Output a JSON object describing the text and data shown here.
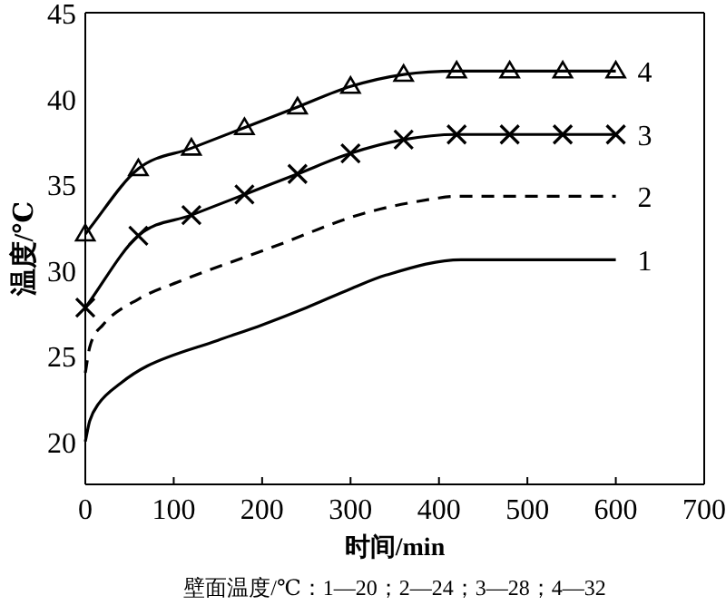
{
  "chart_data": {
    "type": "line",
    "xlabel": "时间/min",
    "ylabel": "温度/℃",
    "annotations": [
      "壁面温度/℃：1—20；2—24；3—28；4—32"
    ],
    "xlim": [
      0,
      700
    ],
    "xticks": [
      0,
      100,
      200,
      300,
      400,
      500,
      600,
      700
    ],
    "ylim": [
      17.5,
      45
    ],
    "yticks": [
      20,
      25,
      30,
      35,
      40,
      45
    ],
    "grid": false,
    "legend": false,
    "series": [
      {
        "name": "1",
        "color": "#000000",
        "line_style": "solid",
        "marker": "none",
        "x": [
          0,
          5,
          15,
          40,
          70,
          150,
          200,
          250,
          300,
          340,
          425,
          600
        ],
        "values": [
          20.0,
          21.2,
          22.2,
          23.4,
          24.4,
          25.9,
          26.8,
          27.8,
          28.9,
          29.7,
          30.6,
          30.6
        ]
      },
      {
        "name": "2",
        "color": "#000000",
        "line_style": "dashed",
        "marker": "none",
        "x": [
          0,
          5,
          20,
          60,
          110,
          210,
          315,
          400,
          420,
          600
        ],
        "values": [
          24.0,
          25.5,
          26.8,
          28.3,
          29.4,
          31.3,
          33.3,
          34.2,
          34.3,
          34.3
        ]
      },
      {
        "name": "3",
        "color": "#000000",
        "line_style": "solid",
        "marker": "cross",
        "x": [
          0,
          60,
          120,
          180,
          240,
          300,
          360,
          420,
          480,
          540,
          600
        ],
        "values": [
          27.8,
          32.0,
          33.2,
          34.4,
          35.6,
          36.8,
          37.6,
          37.9,
          37.9,
          37.9,
          37.9
        ]
      },
      {
        "name": "4",
        "color": "#000000",
        "line_style": "solid",
        "marker": "triangle",
        "x": [
          0,
          60,
          120,
          180,
          240,
          300,
          360,
          420,
          480,
          540,
          600
        ],
        "values": [
          32.1,
          35.9,
          37.1,
          38.3,
          39.5,
          40.7,
          41.4,
          41.6,
          41.6,
          41.6,
          41.6
        ]
      }
    ]
  }
}
